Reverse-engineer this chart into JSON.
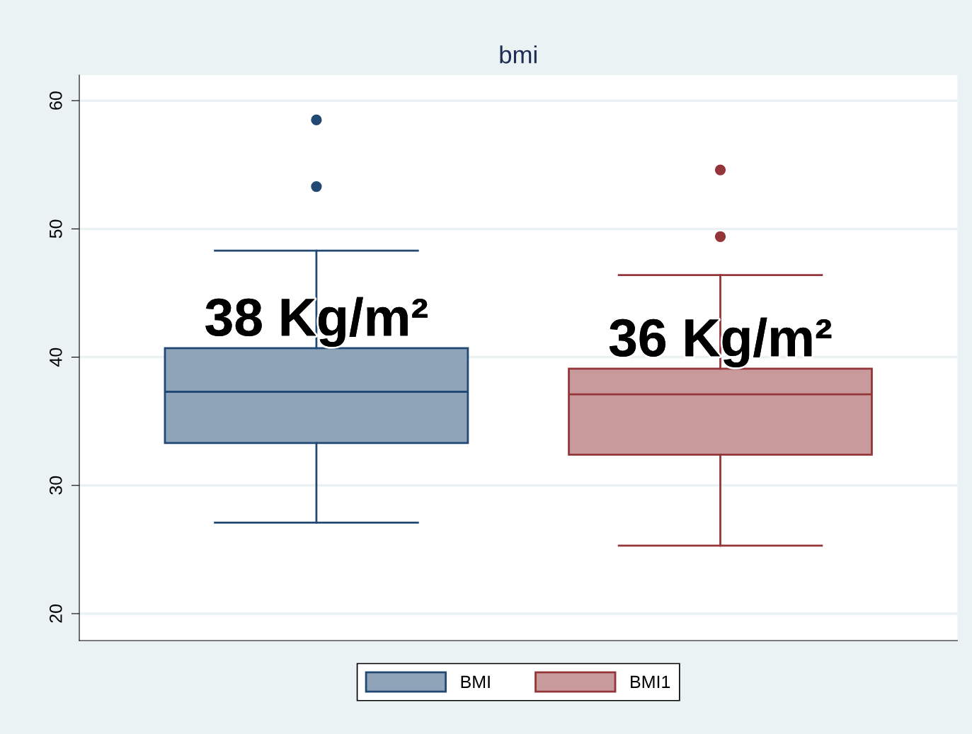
{
  "chart_data": {
    "type": "box",
    "title": "bmi",
    "categories": [
      null
    ],
    "series": [
      {
        "name": "BMI",
        "color": "#90a4b9",
        "boxes": [
          {
            "low": 27.1,
            "q1": 33.3,
            "median": 37.3,
            "q3": 40.7,
            "high": 48.3,
            "outliers": [
              53.3,
              58.5
            ]
          }
        ]
      },
      {
        "name": "BMI1",
        "color": "#c99a9c",
        "boxes": [
          {
            "low": 25.3,
            "q1": 32.4,
            "median": 37.1,
            "q3": 39.1,
            "high": 46.4,
            "outliers": [
              49.4,
              54.6
            ]
          }
        ]
      }
    ],
    "annotations": [
      "38 Kg/m²",
      "36 Kg/m²"
    ],
    "ylim": [
      17.9,
      62.0
    ],
    "yticks": [
      20,
      30,
      40,
      50,
      60
    ],
    "grid": "y",
    "legend": "bottom",
    "tick_labels": "y"
  }
}
